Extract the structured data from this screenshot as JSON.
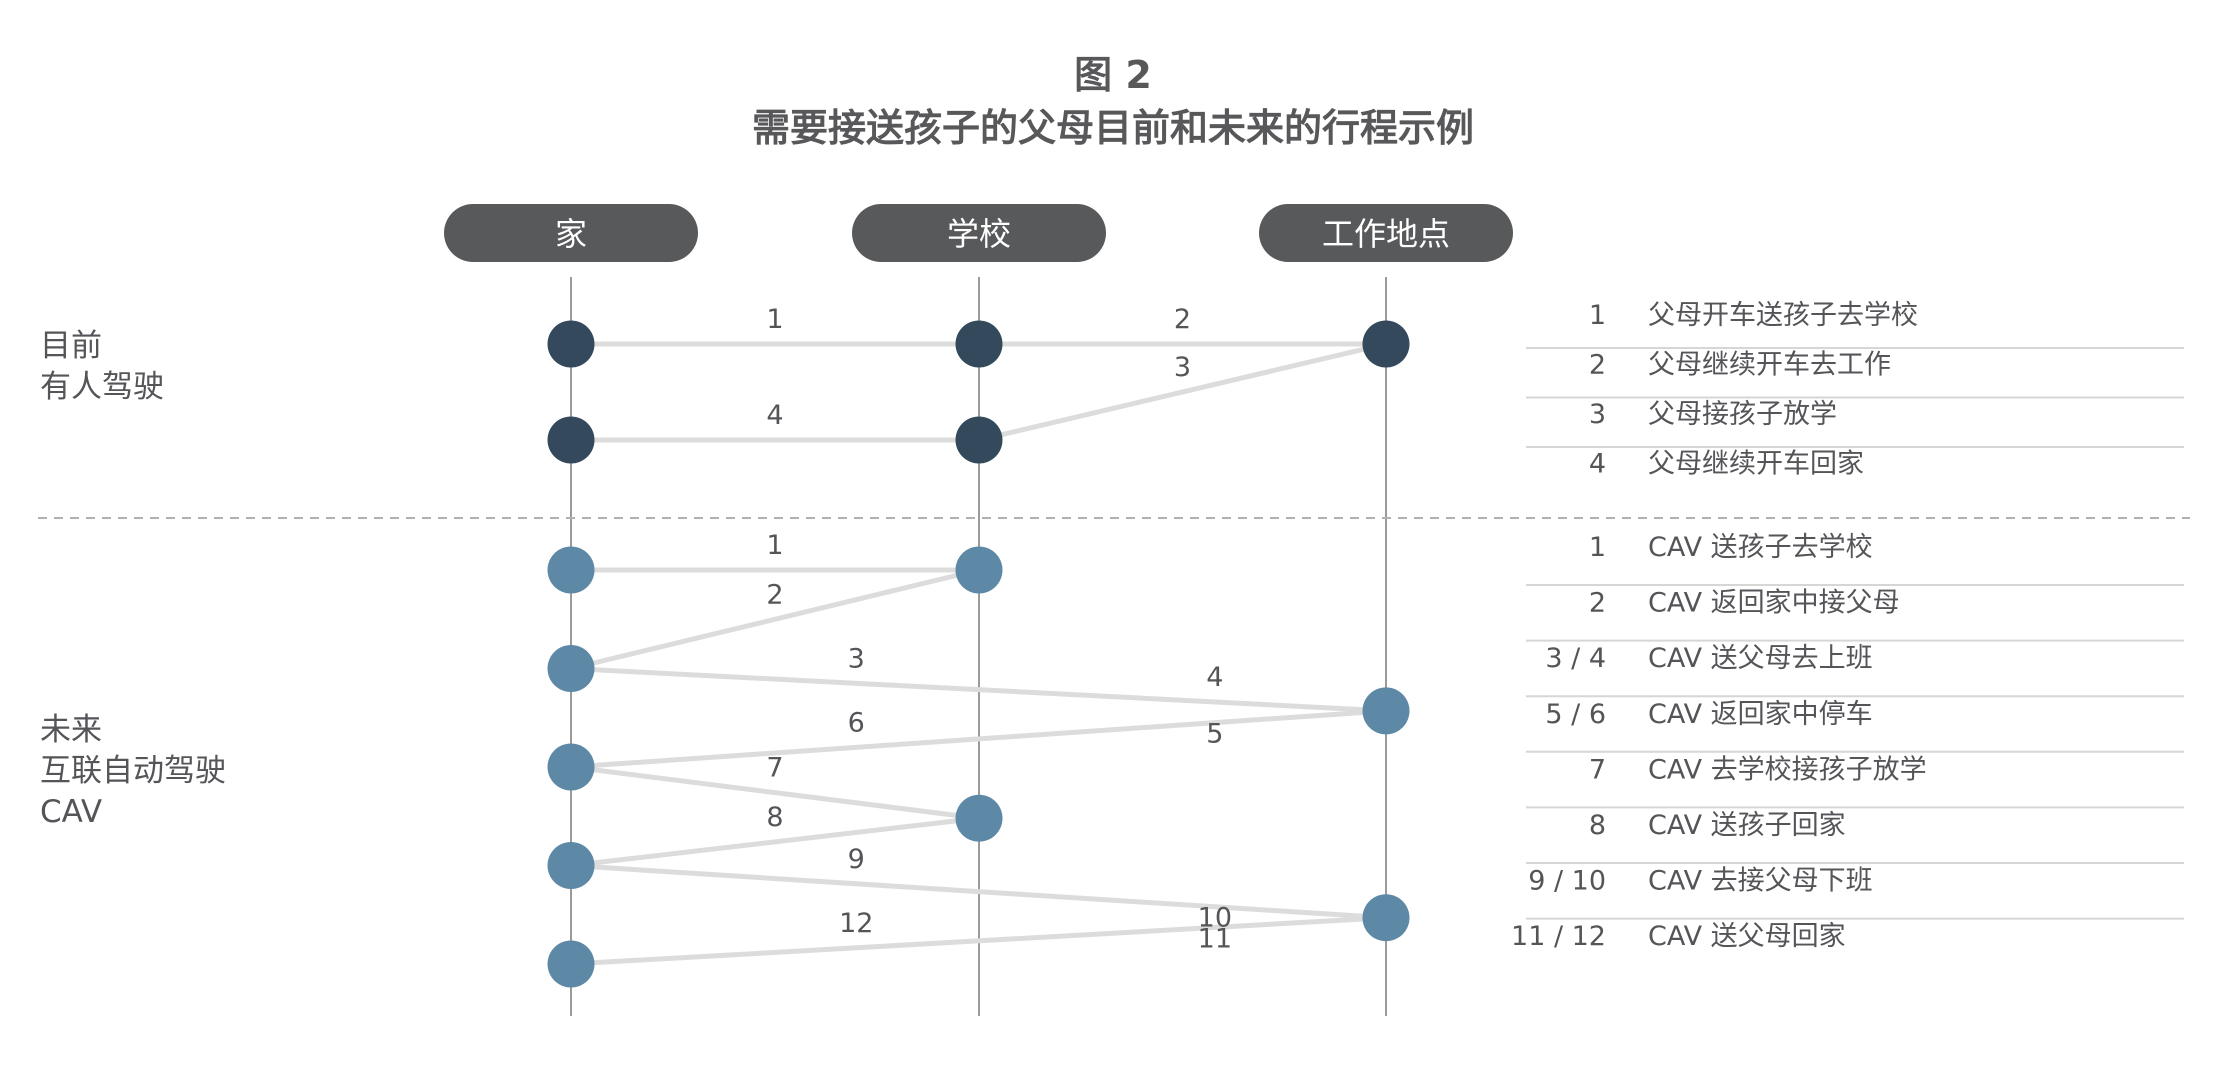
{
  "title": {
    "line1": "图 2",
    "line2": "需要接送孩子的父母目前和未来的行程示例"
  },
  "columns": [
    "家",
    "学校",
    "工作地点"
  ],
  "sections": {
    "current": {
      "label_lines": [
        "目前",
        "有人驾驶"
      ],
      "stops": [
        {
          "col": 0,
          "row": 0
        },
        {
          "col": 1,
          "row": 0
        },
        {
          "col": 2,
          "row": 0
        },
        {
          "col": 0,
          "row": 1
        },
        {
          "col": 1,
          "row": 1
        }
      ],
      "trips": [
        {
          "from": 0,
          "to": 1,
          "label": "1"
        },
        {
          "from": 1,
          "to": 2,
          "label": "2"
        },
        {
          "from": 2,
          "to": 4,
          "label": "3"
        },
        {
          "from": 4,
          "to": 3,
          "label": "4"
        }
      ],
      "legend": [
        {
          "num": "1",
          "text": "父母开车送孩子去学校"
        },
        {
          "num": "2",
          "text": "父母继续开车去工作"
        },
        {
          "num": "3",
          "text": "父母接孩子放学"
        },
        {
          "num": "4",
          "text": "父母继续开车回家"
        }
      ]
    },
    "future": {
      "label_lines": [
        "未来",
        "互联自动驾驶",
        "CAV"
      ],
      "stops": [
        {
          "col": 0,
          "row": 0
        },
        {
          "col": 1,
          "row": 0
        },
        {
          "col": 0,
          "row": 1
        },
        {
          "col": 2,
          "row": 1.43
        },
        {
          "col": 0,
          "row": 2
        },
        {
          "col": 1,
          "row": 2.52
        },
        {
          "col": 0,
          "row": 3
        },
        {
          "col": 2,
          "row": 3.53
        },
        {
          "col": 0,
          "row": 4
        }
      ],
      "trips": [
        {
          "from": 0,
          "to": 1,
          "label": "1"
        },
        {
          "from": 1,
          "to": 2,
          "label": "2"
        },
        {
          "from": 2,
          "to": 3,
          "label": "3",
          "label2": "4"
        },
        {
          "from": 3,
          "to": 4,
          "label": "6",
          "label2": "5"
        },
        {
          "from": 4,
          "to": 5,
          "label": "7"
        },
        {
          "from": 5,
          "to": 6,
          "label": "8"
        },
        {
          "from": 6,
          "to": 7,
          "label": "9",
          "label2": "10"
        },
        {
          "from": 7,
          "to": 8,
          "label": "12",
          "label2": "11"
        }
      ],
      "legend": [
        {
          "num": "1",
          "text": "CAV 送孩子去学校"
        },
        {
          "num": "2",
          "text": "CAV 返回家中接父母"
        },
        {
          "num": "3 / 4",
          "text": "CAV 送父母去上班"
        },
        {
          "num": "5 / 6",
          "text": "CAV 返回家中停车"
        },
        {
          "num": "7",
          "text": "CAV 去学校接孩子放学"
        },
        {
          "num": "8",
          "text": "CAV 送孩子回家"
        },
        {
          "num": "9 / 10",
          "text": "CAV 去接父母下班"
        },
        {
          "num": "11 / 12",
          "text": "CAV 送父母回家"
        }
      ]
    }
  },
  "colors": {
    "title": "#58585b",
    "pill": "#58595b",
    "pill_text": "#ffffff",
    "current_dot": "#34495c",
    "future_dot": "#5e89a6",
    "route": "#dcdcdc",
    "axis": "#9a9a9a",
    "divider": "#b0b0b0",
    "text": "#555559"
  }
}
